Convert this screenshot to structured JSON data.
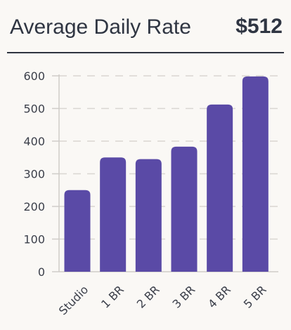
{
  "header": {
    "title": "Average Daily Rate",
    "value": "$512"
  },
  "colors": {
    "bar": "#5a4aa6",
    "grid": "#d9d6d2",
    "axis": "#cfccc8",
    "text": "#2f3542"
  },
  "chart_data": {
    "type": "bar",
    "categories": [
      "Studio",
      "1 BR",
      "2 BR",
      "3 BR",
      "4 BR",
      "5 BR"
    ],
    "values": [
      250,
      350,
      345,
      383,
      512,
      598
    ],
    "ylim": [
      0,
      600
    ],
    "yticks": [
      0,
      100,
      200,
      300,
      400,
      500,
      600
    ],
    "grid": true,
    "title": "",
    "xlabel": "",
    "ylabel": ""
  }
}
